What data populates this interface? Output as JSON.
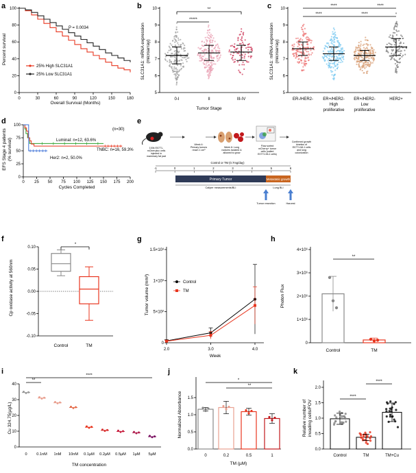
{
  "panels": {
    "a": {
      "label": "a",
      "ylabel": "Percent survival",
      "xlabel": "Overall Survival (Months)",
      "pvalue": "P = 0.0034",
      "xticks": [
        "0",
        "30",
        "60",
        "90",
        "120",
        "150",
        "180"
      ],
      "yticks": [
        "0",
        "20",
        "40",
        "60",
        "80",
        "100"
      ],
      "legend": [
        "25% High SLC31A1",
        "25% Low SLC31A1"
      ]
    },
    "b": {
      "label": "b",
      "ylabel_line1": "SLC31A1: mRNA expression",
      "ylabel_line2": "(microarray)",
      "xlabel": "Tumor Stage",
      "categories": [
        "0-I",
        "II",
        "III-IV"
      ],
      "yticks": [
        "5",
        "6",
        "7",
        "8",
        "9",
        "10"
      ],
      "sig_top": "**",
      "sig_inner": "*****"
    },
    "c": {
      "label": "c",
      "ylabel_line1": "SLC31A1: mRNA expression",
      "ylabel_line2": "(microarray)",
      "categories": [
        "ER-/HER2-",
        "ER+/HER2-",
        "ER+/HER2-",
        "HER2+"
      ],
      "sublabels": [
        [
          "High",
          "proliferative"
        ],
        [
          "Low",
          "proliferative"
        ]
      ],
      "yticks": [
        "5",
        "6",
        "7",
        "8",
        "9",
        "10"
      ],
      "sig": [
        "****",
        "****",
        "****",
        "****"
      ]
    },
    "d": {
      "label": "d",
      "ylabel_line1": "EFS Stage 4 patients",
      "ylabel_line2": "(% survival)",
      "xlabel": "Cycles Completed",
      "n_total": "(n=30)",
      "xticks": [
        "0",
        "25",
        "50",
        "75",
        "100",
        "125",
        "150",
        "175",
        "200"
      ],
      "yticks": [
        "0",
        "25",
        "50",
        "75",
        "100"
      ],
      "series_labels": [
        "Luminal: n=12, 63.6%",
        "TNBC: n=16, 59.3%",
        "Her2: n=2, 50.0%"
      ]
    },
    "e": {
      "label": "e",
      "step1": [
        "100k E0771-",
        "mCherryluc cells",
        "injected in",
        "mammary fat pad"
      ],
      "step2": [
        "Week 4:",
        "Primary tumors",
        "reach 1 cm³"
      ],
      "step3": [
        "Week 6: Lung",
        "nodules isolated &",
        "allowed to grow"
      ],
      "step4": [
        "Flow sorted",
        "mCherry+ tumor",
        "cells (called",
        "E0771.ML1 cells)"
      ],
      "step5": [
        "Confirmed growth",
        "kinetics of",
        "E0771.ML1 cells",
        "and lung",
        "colonization"
      ],
      "treatment": "Control or TM (0.7mg/day)",
      "timeline_ticks": [
        "-1",
        "0",
        "1",
        "2",
        "3",
        "4",
        "5",
        "6"
      ],
      "bar_primary": "Primary Tumor",
      "bar_metastatic": "Metastatic growth",
      "bar_caliper": "Caliper measurements/BLI",
      "bar_lung": "Lung BLI",
      "resection": "Tumor resection",
      "harvest": "Harvest"
    },
    "f": {
      "label": "f",
      "ylabel": "Cp oxidase activity at 560nm",
      "yticks": [
        "-0.10",
        "-0.05",
        "0.00",
        "0.05",
        "0.10"
      ],
      "categories": [
        "Control",
        "TM"
      ],
      "sig": "*"
    },
    "g": {
      "label": "g",
      "ylabel": "Tumor volume (mm³)",
      "xlabel": "Week",
      "xticks": [
        "2.0",
        "3.0",
        "4.0"
      ],
      "yticks": [
        "0",
        "5×10²",
        "1×10³",
        "1.5×10³"
      ],
      "legend": [
        "Control",
        "TM"
      ]
    },
    "h": {
      "label": "h",
      "ylabel": "Photon Flux",
      "yticks": [
        "0",
        "1×10⁶",
        "2×10⁶",
        "3×10⁶",
        "4×10⁶"
      ],
      "categories": [
        "Control",
        "TM"
      ],
      "sig": "**"
    },
    "i": {
      "label": "i",
      "ylabel": "Cu 324.75(µg/L)",
      "xlabel": "TM concentration",
      "categories": [
        "0",
        "0.1nM",
        "1nM",
        "10nM",
        "0.1µM",
        "0.2µM",
        "0.5µM",
        "1µM",
        "5µM"
      ],
      "yticks": [
        "0",
        "10",
        "20",
        "30",
        "40"
      ],
      "sig_short": "**",
      "sig_long": "****"
    },
    "j": {
      "label": "j",
      "ylabel": "Normalized Absorbance",
      "xlabel": "TM (µM)",
      "categories": [
        "0",
        "0.2",
        "0.5",
        "1"
      ],
      "yticks": [
        "0.0",
        "0.5",
        "1.0",
        "1.5"
      ],
      "sig_long": "*",
      "sig_short": "**"
    },
    "k": {
      "label": "k",
      "ylabel_line1": "Relative number of",
      "ylabel_line2": "invading cells/FOV",
      "categories": [
        "Control",
        "TM",
        "TM+Cu"
      ],
      "yticks": [
        "0.0",
        "0.5",
        "1.0",
        "1.5",
        "2.0"
      ],
      "sig": [
        "****",
        "****"
      ]
    }
  },
  "chart_data": [
    {
      "panel": "a",
      "type": "line",
      "title": "",
      "xlabel": "Overall Survival (Months)",
      "ylabel": "Percent survival",
      "xlim": [
        0,
        180
      ],
      "ylim": [
        0,
        100
      ],
      "series": [
        {
          "name": "25% High SLC31A1",
          "color": "#e8351e",
          "x": [
            0,
            10,
            20,
            30,
            40,
            50,
            60,
            70,
            80,
            90,
            100,
            110,
            120,
            130,
            140,
            150,
            160,
            170,
            180
          ],
          "y": [
            100,
            97,
            92,
            87,
            82,
            77,
            72,
            67,
            62,
            57,
            52,
            48,
            44,
            40,
            36,
            32,
            29,
            27,
            24
          ]
        },
        {
          "name": "25% Low SLC31A1",
          "color": "#222222",
          "x": [
            0,
            10,
            20,
            30,
            40,
            50,
            60,
            70,
            80,
            90,
            100,
            110,
            120,
            130,
            140,
            150,
            160,
            170,
            180
          ],
          "y": [
            100,
            98,
            95,
            91,
            87,
            83,
            79,
            75,
            71,
            67,
            63,
            59,
            55,
            51,
            47,
            44,
            41,
            38,
            36
          ]
        }
      ]
    },
    {
      "panel": "b",
      "type": "scatter",
      "xlabel": "Tumor Stage",
      "categories": [
        "0-I",
        "II",
        "III-IV"
      ],
      "ylim": [
        5,
        10
      ],
      "median": [
        7.2,
        7.35,
        7.4
      ],
      "q1": [
        6.7,
        6.9,
        6.9
      ],
      "q3": [
        7.7,
        7.8,
        7.8
      ],
      "colors": [
        "#a0a0a0",
        "#e9a2b4",
        "#cf3d5d"
      ]
    },
    {
      "panel": "c",
      "type": "scatter",
      "categories": [
        "ER-/HER2-",
        "ER+/HER2- High proliferative",
        "ER+/HER2- Low proliferative",
        "HER2+"
      ],
      "ylim": [
        5,
        10
      ],
      "median": [
        7.6,
        7.3,
        7.2,
        7.7
      ],
      "q1": [
        7.2,
        6.9,
        6.9,
        7.2
      ],
      "q3": [
        8.0,
        7.7,
        7.5,
        8.2
      ],
      "colors": [
        "#ee7a7a",
        "#7fcbf2",
        "#d9a27a",
        "#7b7b7b"
      ]
    },
    {
      "panel": "d",
      "type": "line",
      "xlabel": "Cycles Completed",
      "xlim": [
        0,
        200
      ],
      "ylim": [
        0,
        100
      ],
      "series": [
        {
          "name": "Luminal: n=12, 63.6%",
          "color": "#2ca02c",
          "x": [
            0,
            3,
            5,
            8,
            10,
            12,
            15,
            25,
            150
          ],
          "y": [
            100,
            92,
            83,
            75,
            75,
            64,
            64,
            64,
            64
          ]
        },
        {
          "name": "TNBC: n=16, 59.3%",
          "color": "#e8351e",
          "x": [
            0,
            3,
            6,
            9,
            12,
            15,
            20,
            150,
            185
          ],
          "y": [
            100,
            94,
            88,
            75,
            69,
            63,
            59,
            59,
            59
          ]
        },
        {
          "name": "Her2: n=2, 50.0%",
          "color": "#3b6fd6",
          "x": [
            0,
            5,
            10,
            45
          ],
          "y": [
            100,
            100,
            50,
            50
          ]
        }
      ]
    },
    {
      "panel": "f",
      "type": "bar",
      "categories": [
        "Control",
        "TM"
      ],
      "median": [
        0.062,
        0.005
      ],
      "q1": [
        0.045,
        -0.028
      ],
      "q3": [
        0.085,
        0.033
      ],
      "min": [
        0.035,
        -0.065
      ],
      "max": [
        0.093,
        0.055
      ],
      "ylim": [
        -0.1,
        0.1
      ]
    },
    {
      "panel": "g",
      "type": "line",
      "xlabel": "Week",
      "ylabel": "Tumor volume (mm³)",
      "xlim": [
        2,
        4
      ],
      "ylim": [
        0,
        1500
      ],
      "series": [
        {
          "name": "Control",
          "color": "#000000",
          "x": [
            2,
            3,
            4
          ],
          "y": [
            30,
            160,
            700
          ],
          "err": [
            20,
            80,
            560
          ]
        },
        {
          "name": "TM",
          "color": "#e8351e",
          "x": [
            2,
            3,
            4
          ],
          "y": [
            25,
            120,
            600
          ],
          "err": [
            15,
            60,
            300
          ]
        }
      ]
    },
    {
      "panel": "h",
      "type": "bar",
      "categories": [
        "Control",
        "TM"
      ],
      "values": [
        2100000,
        120000
      ],
      "err": [
        750000,
        80000
      ],
      "points": [
        [
          2800000,
          1800000,
          1500000
        ],
        [
          150000,
          80000,
          110000
        ]
      ],
      "ylim": [
        0,
        4000000
      ]
    },
    {
      "panel": "i",
      "type": "scatter",
      "xlabel": "TM concentration",
      "categories": [
        "0",
        "0.1nM",
        "1nM",
        "10nM",
        "0.1µM",
        "0.2µM",
        "0.5µM",
        "1µM",
        "5µM"
      ],
      "values": [
        34.5,
        31.0,
        28.0,
        25.0,
        12.5,
        10.5,
        9.8,
        9.0,
        6.5
      ],
      "ylim": [
        0,
        40
      ]
    },
    {
      "panel": "j",
      "type": "bar",
      "xlabel": "TM (µM)",
      "categories": [
        "0",
        "0.2",
        "0.5",
        "1"
      ],
      "values": [
        1.16,
        1.21,
        1.09,
        0.89
      ],
      "err": [
        0.05,
        0.18,
        0.1,
        0.14
      ],
      "ylim": [
        0,
        1.5
      ]
    },
    {
      "panel": "k",
      "type": "bar",
      "categories": [
        "Control",
        "TM",
        "TM+Cu"
      ],
      "values": [
        0.98,
        0.38,
        1.19
      ],
      "err": [
        0.18,
        0.1,
        0.3
      ],
      "ylim": [
        0,
        2
      ]
    }
  ]
}
